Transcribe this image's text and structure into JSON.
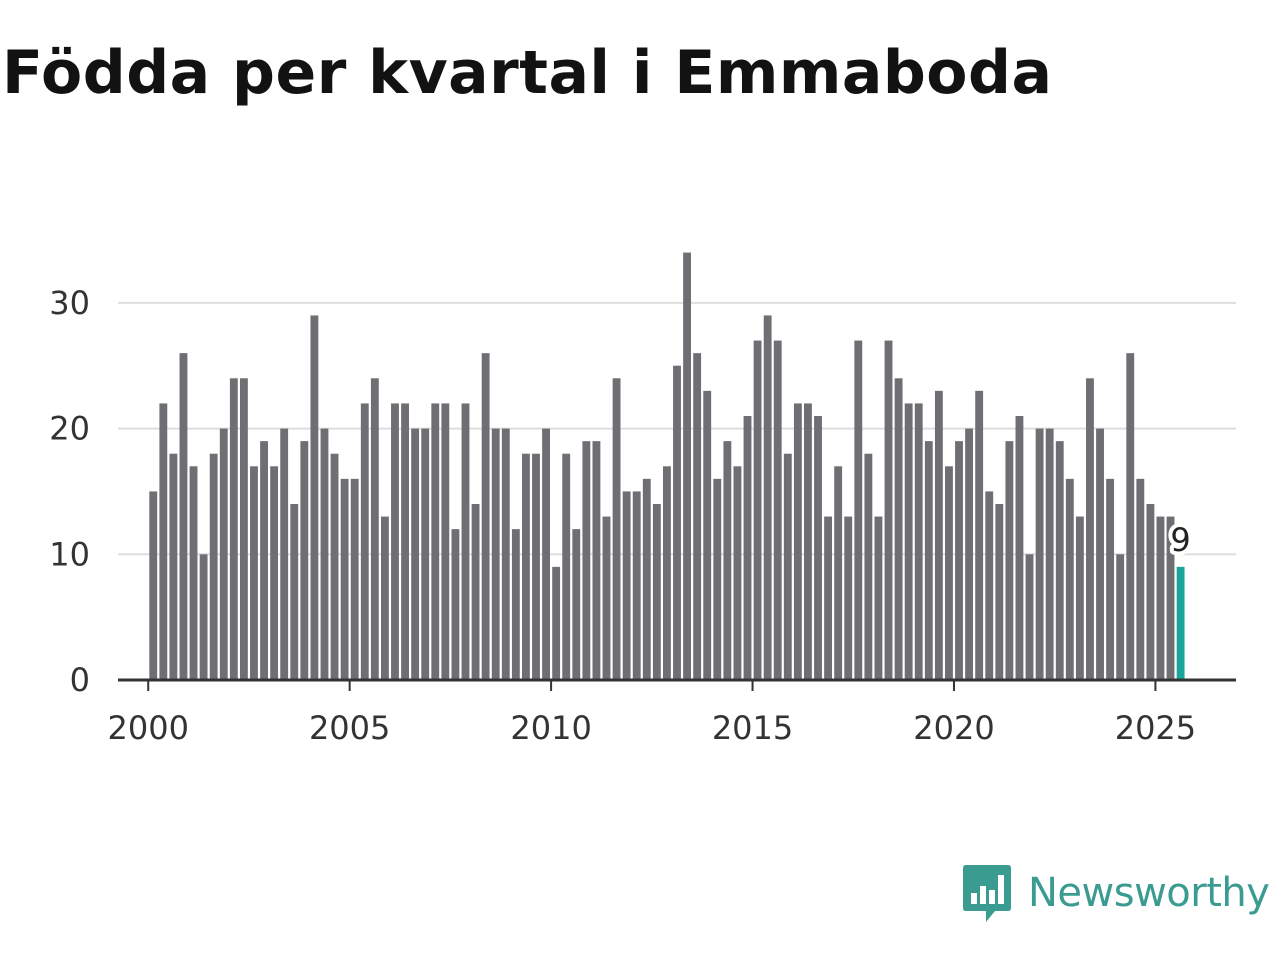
{
  "title": "Födda per kvartal i Emmaboda",
  "brand": {
    "name": "Newsworthy",
    "color": "#3a9b91"
  },
  "colors": {
    "bar": "#6f6e73",
    "highlight": "#19a59a",
    "grid": "#dedede",
    "axis": "#333333"
  },
  "chart_data": {
    "type": "bar",
    "title": "Födda per kvartal i Emmaboda",
    "xlabel": "",
    "ylabel": "",
    "ylim": [
      0,
      35
    ],
    "yticks": [
      0,
      10,
      20,
      30
    ],
    "xticks": [
      2000,
      2005,
      2010,
      2015,
      2020,
      2025
    ],
    "x_start": 2000.0,
    "x_step": 0.25,
    "xlim": [
      1999.25,
      2027.0
    ],
    "grid": true,
    "last_value_label": "9",
    "values": [
      15,
      22,
      18,
      26,
      17,
      10,
      18,
      20,
      24,
      24,
      17,
      19,
      17,
      20,
      14,
      19,
      29,
      20,
      18,
      16,
      16,
      22,
      24,
      13,
      22,
      22,
      20,
      20,
      22,
      22,
      12,
      22,
      14,
      26,
      20,
      20,
      12,
      18,
      18,
      20,
      9,
      18,
      12,
      19,
      19,
      13,
      24,
      15,
      15,
      16,
      14,
      17,
      25,
      34,
      26,
      23,
      16,
      19,
      17,
      21,
      27,
      29,
      27,
      18,
      22,
      22,
      21,
      13,
      17,
      13,
      27,
      18,
      13,
      27,
      24,
      22,
      22,
      19,
      23,
      17,
      19,
      20,
      23,
      15,
      14,
      19,
      21,
      10,
      20,
      20,
      19,
      16,
      13,
      24,
      20,
      16,
      10,
      26,
      16,
      14,
      13,
      13,
      9
    ]
  }
}
